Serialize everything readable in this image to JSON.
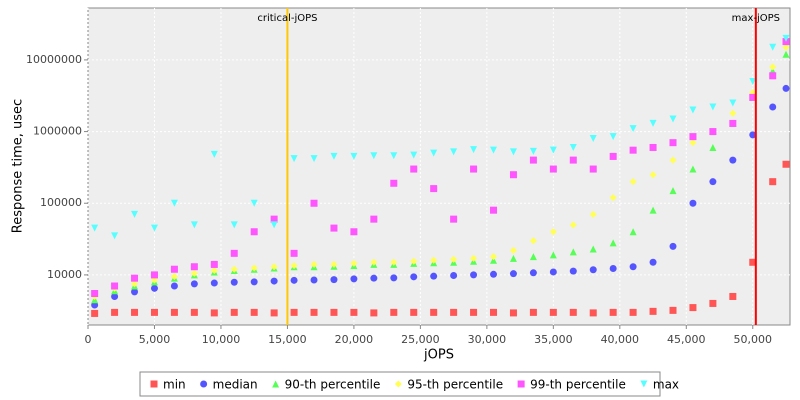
{
  "chart_data": {
    "type": "scatter",
    "x_label": "jOPS",
    "y_label": "Response time, usec",
    "xlim": [
      0,
      52800
    ],
    "ylim": [
      2000,
      53000000
    ],
    "ylog": true,
    "grid": true,
    "legend": "bottom",
    "xticks": [
      0,
      {
        "value": 5000,
        "label": "5,000"
      },
      {
        "value": 10000,
        "label": "10,000"
      },
      {
        "value": 15000,
        "label": "15,000"
      },
      {
        "value": 20000,
        "label": "20,000"
      },
      {
        "value": 25000,
        "label": "25,000"
      },
      {
        "value": 30000,
        "label": "30,000"
      },
      {
        "value": 35000,
        "label": "35,000"
      },
      {
        "value": 40000,
        "label": "40,000"
      },
      {
        "value": 45000,
        "label": "45,000"
      },
      {
        "value": 50000,
        "label": "50,000"
      }
    ],
    "yticks": [
      10000,
      100000,
      1000000,
      10000000
    ],
    "annotations": [
      {
        "label": "critical-jOPS",
        "x": 15000,
        "color": "#ffc800"
      },
      {
        "label": "max-jOPS",
        "x": 50230,
        "color": "#ff0000"
      }
    ],
    "x": [
      500,
      2000,
      3500,
      5000,
      6500,
      8000,
      9500,
      11000,
      12500,
      14000,
      15500,
      17000,
      18500,
      20000,
      21500,
      23000,
      24500,
      26000,
      27500,
      29000,
      30500,
      32000,
      33500,
      35000,
      36500,
      38000,
      39500,
      41000,
      42500,
      44000,
      45500,
      47000,
      48500,
      50000,
      51500,
      52500
    ],
    "series": [
      {
        "name": "min",
        "color": "#ff5555",
        "marker": "square",
        "values": [
          2900,
          3000,
          3000,
          3000,
          3000,
          3000,
          2950,
          3000,
          3000,
          2950,
          3000,
          3000,
          3000,
          3000,
          2950,
          3000,
          3000,
          3000,
          3000,
          3000,
          3000,
          2950,
          3000,
          3000,
          3000,
          2950,
          3000,
          3000,
          3100,
          3200,
          3500,
          4000,
          5000,
          15000,
          200000,
          350000
        ]
      },
      {
        "name": "median",
        "color": "#5555ff",
        "marker": "circle",
        "values": [
          3800,
          5000,
          5800,
          6500,
          7000,
          7500,
          7700,
          7900,
          8000,
          8200,
          8400,
          8500,
          8600,
          8800,
          9000,
          9100,
          9400,
          9600,
          9800,
          10000,
          10200,
          10400,
          10700,
          11000,
          11300,
          11800,
          12300,
          13000,
          15000,
          25000,
          100000,
          200000,
          400000,
          900000,
          2200000,
          4000000
        ]
      },
      {
        "name": "90-th percentile",
        "color": "#55ff55",
        "marker": "triangle",
        "values": [
          4500,
          6000,
          7000,
          8000,
          9000,
          10000,
          11000,
          11500,
          12000,
          12500,
          13000,
          13000,
          13200,
          13500,
          14000,
          14000,
          14500,
          14800,
          15000,
          15500,
          16000,
          17000,
          18000,
          19000,
          21000,
          23000,
          28000,
          40000,
          80000,
          150000,
          300000,
          600000,
          1300000,
          3000000,
          7000000,
          12000000
        ]
      },
      {
        "name": "95-th percentile",
        "color": "#ffff55",
        "marker": "diamond",
        "values": [
          5000,
          6500,
          7500,
          8500,
          9500,
          10500,
          11500,
          12000,
          12500,
          13000,
          13500,
          14000,
          14000,
          14500,
          15000,
          15000,
          15500,
          16000,
          16500,
          17000,
          18000,
          22000,
          30000,
          40000,
          50000,
          70000,
          120000,
          200000,
          250000,
          400000,
          700000,
          1000000,
          1800000,
          3500000,
          8000000,
          15000000
        ]
      },
      {
        "name": "99-th percentile",
        "color": "#ff55ff",
        "marker": "square",
        "values": [
          5500,
          7000,
          9000,
          10000,
          12000,
          13000,
          14000,
          20000,
          40000,
          60000,
          20000,
          100000,
          45000,
          40000,
          60000,
          190000,
          300000,
          160000,
          60000,
          300000,
          80000,
          250000,
          400000,
          300000,
          400000,
          300000,
          450000,
          550000,
          600000,
          700000,
          850000,
          1000000,
          1300000,
          3000000,
          6000000,
          18000000
        ]
      },
      {
        "name": "max",
        "color": "#55ffff",
        "marker": "triangle-down",
        "values": [
          45000,
          35000,
          70000,
          45000,
          100000,
          50000,
          480000,
          50000,
          100000,
          50000,
          420000,
          420000,
          450000,
          450000,
          460000,
          460000,
          470000,
          500000,
          520000,
          560000,
          550000,
          520000,
          530000,
          550000,
          600000,
          800000,
          850000,
          1100000,
          1300000,
          1500000,
          2000000,
          2200000,
          2500000,
          5000000,
          15000000,
          20000000
        ]
      }
    ]
  }
}
